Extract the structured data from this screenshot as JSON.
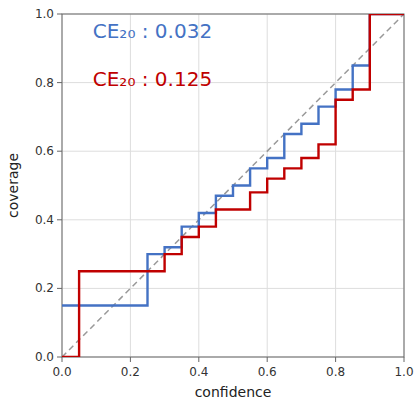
{
  "chart_data": {
    "type": "line",
    "xlabel": "confidence",
    "ylabel": "coverage",
    "xlim": [
      0.0,
      1.0
    ],
    "ylim": [
      0.0,
      1.0
    ],
    "xticks": [
      {
        "value": 0.0,
        "label": "0.0"
      },
      0.2,
      0.4,
      0.6,
      0.8,
      {
        "value": 1.0,
        "label": "1.0"
      }
    ],
    "yticks": [
      {
        "value": 0.0,
        "label": "0.0"
      },
      0.2,
      0.4,
      0.6,
      0.8,
      {
        "value": 1.0,
        "label": "1.0"
      }
    ],
    "grid": true,
    "series": [
      {
        "type": "line",
        "line_style": "dashed",
        "color": "#999999",
        "x": [
          0,
          1
        ],
        "values": [
          0,
          1
        ]
      },
      {
        "type": "step",
        "color": "#4472C4",
        "x": [
          0.0,
          0.2,
          0.25,
          0.3,
          0.35,
          0.4,
          0.45,
          0.5,
          0.55,
          0.6,
          0.65,
          0.7,
          0.75,
          0.8,
          0.85,
          0.9,
          1.0
        ],
        "values": [
          0.15,
          0.15,
          0.3,
          0.32,
          0.38,
          0.42,
          0.47,
          0.5,
          0.55,
          0.58,
          0.65,
          0.68,
          0.73,
          0.78,
          0.85,
          1.0,
          1.0
        ]
      },
      {
        "type": "step",
        "color": "#C00000",
        "x": [
          0.0,
          0.05,
          0.2,
          0.25,
          0.3,
          0.35,
          0.4,
          0.45,
          0.5,
          0.55,
          0.6,
          0.65,
          0.7,
          0.75,
          0.8,
          0.85,
          0.9,
          1.0
        ],
        "values": [
          0.0,
          0.25,
          0.25,
          0.25,
          0.3,
          0.35,
          0.38,
          0.43,
          0.43,
          0.48,
          0.52,
          0.55,
          0.58,
          0.62,
          0.75,
          0.78,
          1.0,
          1.0
        ]
      }
    ],
    "annotations": [
      {
        "text": "CE₂₀ : 0.032",
        "color": "#4472C4"
      },
      {
        "text": "CE₂₀ : 0.125",
        "color": "#C00000"
      }
    ]
  }
}
